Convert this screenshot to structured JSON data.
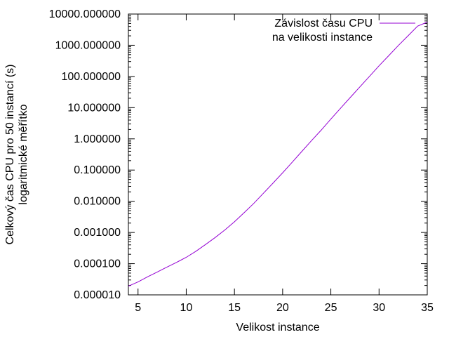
{
  "chart_data": {
    "type": "line",
    "title": "",
    "xlabel": "Velikost instance",
    "ylabel_lines": [
      "Celkový čas CPU pro 50 instancí (s)",
      "logaritmické měřítko"
    ],
    "x_scale": "linear",
    "y_scale": "log",
    "xlim": [
      4,
      35
    ],
    "ylim": [
      1e-05,
      10000
    ],
    "x_ticks": [
      5,
      10,
      15,
      20,
      25,
      30,
      35
    ],
    "x_tick_labels": [
      "5",
      "10",
      "15",
      "20",
      "25",
      "30",
      "35"
    ],
    "y_ticks": [
      1e-05,
      0.0001,
      0.001,
      0.01,
      0.1,
      1,
      10,
      100,
      1000,
      10000
    ],
    "y_tick_labels": [
      "0.000010",
      "0.000100",
      "0.001000",
      "0.010000",
      "0.100000",
      "1.000000",
      "10.000000",
      "100.000000",
      "1000.000000",
      "10000.000000"
    ],
    "grid": false,
    "legend_position": "top-right",
    "series": [
      {
        "name_lines": [
          "Závislost času CPU",
          "na velikosti instance"
        ],
        "color": "#9400d3",
        "x": [
          4,
          5,
          6,
          7,
          8,
          9,
          10,
          11,
          12,
          13,
          14,
          15,
          16,
          17,
          18,
          19,
          20,
          21,
          22,
          23,
          24,
          25,
          26,
          27,
          28,
          29,
          30,
          31,
          32,
          33,
          34,
          35
        ],
        "y": [
          1.9e-05,
          2.6e-05,
          3.8e-05,
          5.4e-05,
          7.8e-05,
          0.00011,
          0.00016,
          0.00025,
          0.00041,
          0.00069,
          0.0012,
          0.0022,
          0.0043,
          0.0085,
          0.018,
          0.038,
          0.082,
          0.18,
          0.4,
          0.88,
          1.9,
          4.3,
          9.5,
          21,
          46,
          100,
          220,
          460,
          980,
          2000,
          4100,
          5500
        ]
      }
    ]
  }
}
